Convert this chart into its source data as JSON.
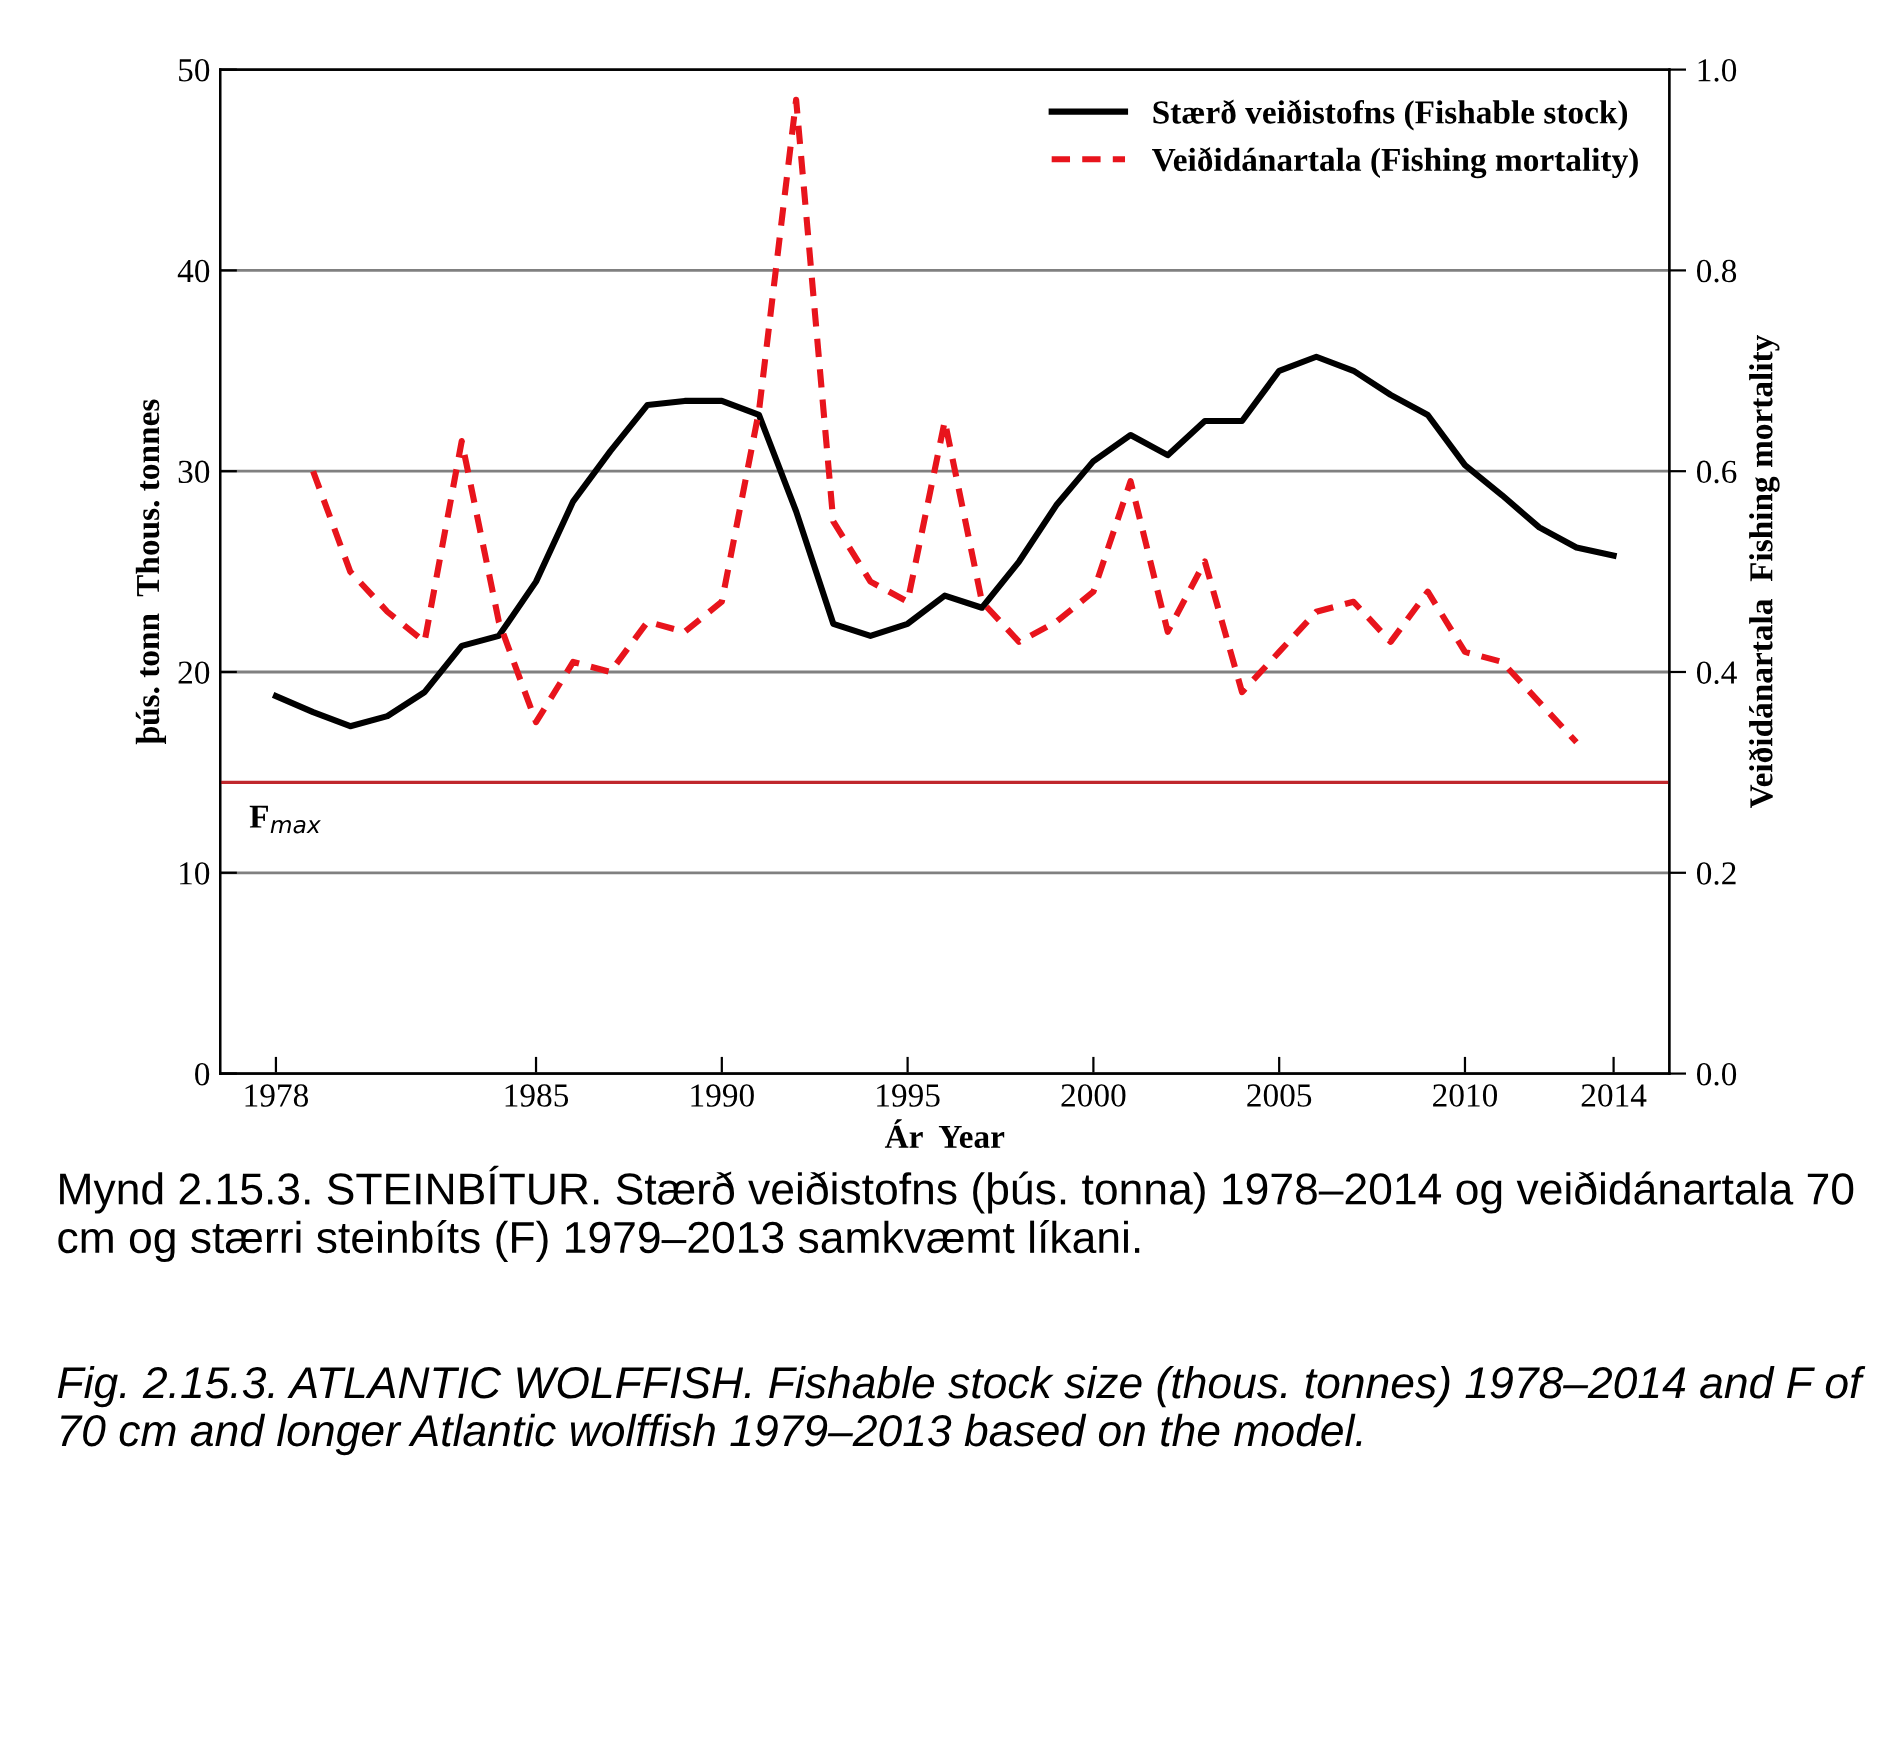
{
  "chart_data": {
    "type": "line",
    "xlabel": "Ár  Year",
    "ylabel": "þús. tonn  Thous. tonnes",
    "y2label": "Veiðidánartala  Fishing mortality",
    "x": [
      1978,
      1979,
      1980,
      1981,
      1982,
      1983,
      1984,
      1985,
      1986,
      1987,
      1988,
      1989,
      1990,
      1991,
      1992,
      1993,
      1994,
      1995,
      1996,
      1997,
      1998,
      1999,
      2000,
      2001,
      2002,
      2003,
      2004,
      2005,
      2006,
      2007,
      2008,
      2009,
      2010,
      2011,
      2012,
      2013,
      2014
    ],
    "series": [
      {
        "name": "Stærð veiðistofns (Fishable stock)",
        "color": "#000000",
        "line_style": "solid",
        "values": [
          18.8,
          18.0,
          17.3,
          17.8,
          19.0,
          21.3,
          21.8,
          24.5,
          28.5,
          31.0,
          33.3,
          33.5,
          33.5,
          32.8,
          28.0,
          22.4,
          21.8,
          22.4,
          23.8,
          23.2,
          25.5,
          28.3,
          30.5,
          31.8,
          30.8,
          32.5,
          32.5,
          35.0,
          35.7,
          35.0,
          33.8,
          32.8,
          30.3,
          28.8,
          27.2,
          26.2,
          25.8
        ]
      },
      {
        "name": "Veiðidánartala (Fishing mortality)",
        "color": "#e8141c",
        "line_style": "dashed",
        "axis": "y2",
        "values": [
          null,
          0.6,
          0.5,
          0.46,
          0.43,
          0.63,
          0.45,
          0.35,
          0.41,
          0.4,
          0.45,
          0.44,
          0.47,
          0.66,
          0.97,
          0.55,
          0.49,
          0.47,
          0.65,
          0.47,
          0.43,
          0.45,
          0.48,
          0.59,
          0.44,
          0.51,
          0.38,
          0.42,
          0.46,
          0.47,
          0.43,
          0.48,
          0.42,
          0.41,
          0.37,
          0.33,
          null
        ]
      }
    ],
    "xlim": [
      1976.5,
      2015.5
    ],
    "xticks": [
      1978,
      1985,
      1990,
      1995,
      2000,
      2005,
      2010,
      2014
    ],
    "ylim": [
      0,
      50
    ],
    "yticks": [
      0,
      10,
      20,
      30,
      40,
      50
    ],
    "y2lim": [
      0,
      1
    ],
    "y2ticks": [
      {
        "value": 0,
        "label": "0.0"
      },
      0.2,
      0.4,
      0.6,
      0.8,
      {
        "value": 1,
        "label": "1.0"
      }
    ],
    "ref_lines": [
      {
        "axis": "y2",
        "value": 0.29,
        "label": "F$_{max}$",
        "color": "#c0282d"
      }
    ],
    "grid": "y",
    "legend": "top right",
    "marker": "none",
    "annotations": [
      "Mynd 2.15.3. STEINBÍTUR. Stærð veiðistofns (þús. tonna) 1978–2014 og veiðidánartala 70 cm og stærri steinbíts (F) 1979–2013 samkvæmt líkani.",
      "Fig. 2.15.3. ATLANTIC WOLFFISH. Fishable stock size (thous. tonnes) 1978–2014 and F of 70 cm and longer Atlantic wolffish 1979–2013 based on the model."
    ]
  }
}
